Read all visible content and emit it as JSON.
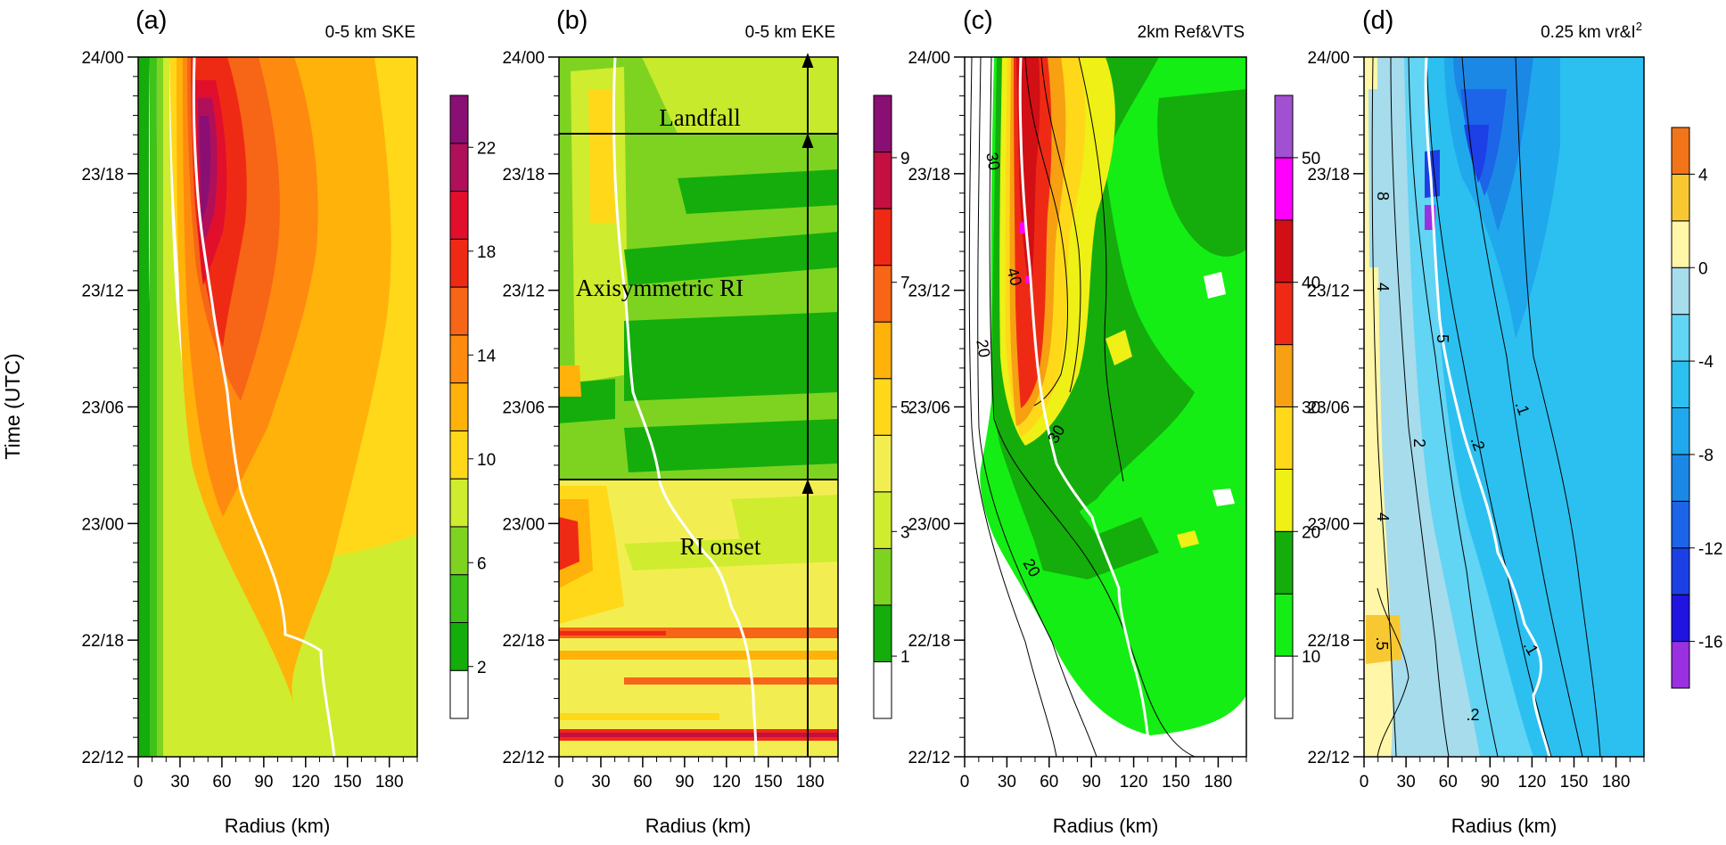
{
  "figure": {
    "y_axis_title": "Time (UTC)",
    "x_axis_title": "Radius (km)",
    "time_ticks": [
      "24/00",
      "23/18",
      "23/12",
      "23/06",
      "23/00",
      "22/18",
      "22/12"
    ],
    "radius_ticks": [
      "0",
      "30",
      "60",
      "90",
      "120",
      "150",
      "180"
    ]
  },
  "chart_data": [
    {
      "type": "heatmap",
      "panel": "(a)",
      "title": "0-5 km SKE",
      "xlabel": "Radius (km)",
      "ylabel": "Time (UTC)",
      "xlim": [
        0,
        200
      ],
      "ylim": [
        "22/12",
        "24/00"
      ],
      "colorbar": {
        "levels": [
          0,
          2,
          4,
          6,
          8,
          10,
          12,
          14,
          16,
          18,
          20,
          22,
          24
        ],
        "tick_labels": [
          "2",
          "6",
          "10",
          "14",
          "18",
          "22"
        ],
        "colors": [
          "#ffffff",
          "#14ad0c",
          "#3fc21a",
          "#7ed321",
          "#d0ec2e",
          "#ffd81a",
          "#ffb20a",
          "#ff8a10",
          "#f76516",
          "#ef2a14",
          "#e20f2c",
          "#b0105a",
          "#8a0f74"
        ]
      },
      "rmw_track_km": [
        [
          22.5,
          143
        ],
        [
          23.0,
          130
        ],
        [
          23.25,
          82
        ],
        [
          23.5,
          52
        ],
        [
          23.75,
          40
        ],
        [
          24.0,
          40
        ]
      ]
    },
    {
      "type": "heatmap",
      "panel": "(b)",
      "title": "0-5 km EKE",
      "xlabel": "Radius (km)",
      "xlim": [
        0,
        200
      ],
      "ylim": [
        "22/12",
        "24/00"
      ],
      "annotations": [
        "Landfall",
        "Axisymmetric RI",
        "RI onset"
      ],
      "event_times": {
        "RI onset": "23/03",
        "Landfall": "23/21"
      },
      "colorbar": {
        "levels": [
          0,
          1,
          2,
          3,
          4,
          5,
          6,
          7,
          8,
          9,
          10
        ],
        "tick_labels": [
          "1",
          "3",
          "5",
          "7",
          "9"
        ],
        "colors": [
          "#ffffff",
          "#14ad0c",
          "#7ed321",
          "#d0ec2e",
          "#f2ee52",
          "#ffd81a",
          "#ffb20a",
          "#f76516",
          "#ef2a14",
          "#c30f42",
          "#8a0f74"
        ]
      },
      "rmw_track_km": [
        [
          22.5,
          135
        ],
        [
          23.0,
          85
        ],
        [
          23.25,
          62
        ],
        [
          23.5,
          50
        ],
        [
          23.75,
          38
        ],
        [
          24.0,
          40
        ]
      ]
    },
    {
      "type": "heatmap",
      "panel": "(c)",
      "title": "2km Ref&VTS",
      "xlabel": "Radius (km)",
      "xlim": [
        0,
        200
      ],
      "ylim": [
        "22/12",
        "24/00"
      ],
      "contour_labels": [
        "20",
        "30",
        "40",
        "30",
        "20"
      ],
      "colorbar": {
        "levels": [
          5,
          10,
          15,
          20,
          25,
          30,
          35,
          40,
          45,
          50,
          55
        ],
        "tick_labels": [
          "10",
          "20",
          "30",
          "40",
          "50"
        ],
        "colors": [
          "#ffffff",
          "#14ee14",
          "#14ad0c",
          "#eef016",
          "#ffd81a",
          "#f7a012",
          "#ef2a14",
          "#d20f14",
          "#ff00ff",
          "#a050d0"
        ]
      },
      "rmw_track_km": [
        [
          22.5,
          130
        ],
        [
          23.0,
          95
        ],
        [
          23.25,
          70
        ],
        [
          23.5,
          50
        ],
        [
          23.75,
          40
        ],
        [
          24.0,
          38
        ]
      ]
    },
    {
      "type": "heatmap",
      "panel": "(d)",
      "title": "0.25 km vr&I",
      "title_superscript": "2",
      "xlabel": "Radius (km)",
      "xlim": [
        0,
        200
      ],
      "ylim": [
        "22/12",
        "24/00"
      ],
      "contour_labels": [
        "8",
        "4",
        "5",
        ".1",
        "2",
        ".2",
        "4",
        ".1",
        ".5",
        ".2"
      ],
      "colorbar": {
        "levels": [
          -18,
          -16,
          -14,
          -12,
          -10,
          -8,
          -6,
          -4,
          -2,
          0,
          2,
          4,
          6
        ],
        "tick_labels": [
          "4",
          "0",
          "-4",
          "-8",
          "-12",
          "-16"
        ],
        "colors": [
          "#9a30e0",
          "#2014e0",
          "#1c40e6",
          "#1c64e8",
          "#1c88e6",
          "#20a8ec",
          "#2cc0f0",
          "#62d4f4",
          "#a6dcec",
          "#fff6a8",
          "#f8c832",
          "#f27418"
        ]
      },
      "rmw_track_km": [
        [
          22.5,
          145
        ],
        [
          23.0,
          110
        ],
        [
          23.25,
          80
        ],
        [
          23.5,
          55
        ],
        [
          23.75,
          45
        ],
        [
          24.0,
          38
        ]
      ]
    }
  ]
}
